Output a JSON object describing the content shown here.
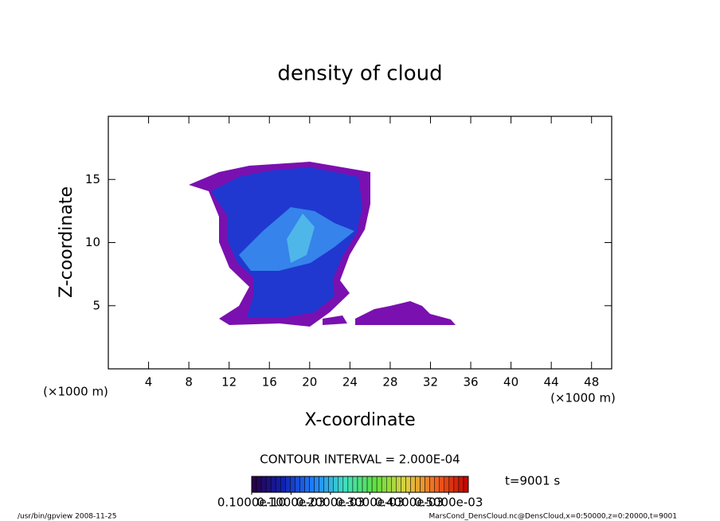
{
  "chart_data": {
    "type": "contour",
    "title": "density of cloud",
    "xlabel": "X-coordinate",
    "ylabel": "Z-coordinate",
    "xunit": "(×1000 m)",
    "xlim": [
      0,
      50
    ],
    "xticks": [
      4,
      8,
      12,
      16,
      20,
      24,
      28,
      32,
      36,
      40,
      44,
      48
    ],
    "ylim": [
      0,
      20
    ],
    "yticks": [
      5,
      10,
      15
    ],
    "contour_interval": "CONTOUR INTERVAL = 2.000E-04",
    "time_label": "t=9001 s",
    "colorbar": {
      "clim": [
        0,
        0.00055
      ],
      "colors": [
        "#2a0040",
        "#1020b0",
        "#2080ff",
        "#40e0c0",
        "#60e040",
        "#e0d040",
        "#f06020",
        "#c00000"
      ],
      "ticks": [
        {
          "value": 1e-11,
          "label": "0.1000e-10"
        },
        {
          "value": 0.0001,
          "label": "0.1000e-03"
        },
        {
          "value": 0.0002,
          "label": "0.2000e-03"
        },
        {
          "value": 0.0003,
          "label": "0.3000e-03"
        },
        {
          "value": 0.0004,
          "label": "0.4000e-03"
        },
        {
          "value": 0.0005,
          "label": "0.5000e-03"
        }
      ]
    },
    "footer_left": "/usr/bin/gpview  2008-11-25",
    "footer_right": "MarsCond_DensCloud.nc@DensCloud,x=0:50000,z=0:20000,t=9001"
  }
}
